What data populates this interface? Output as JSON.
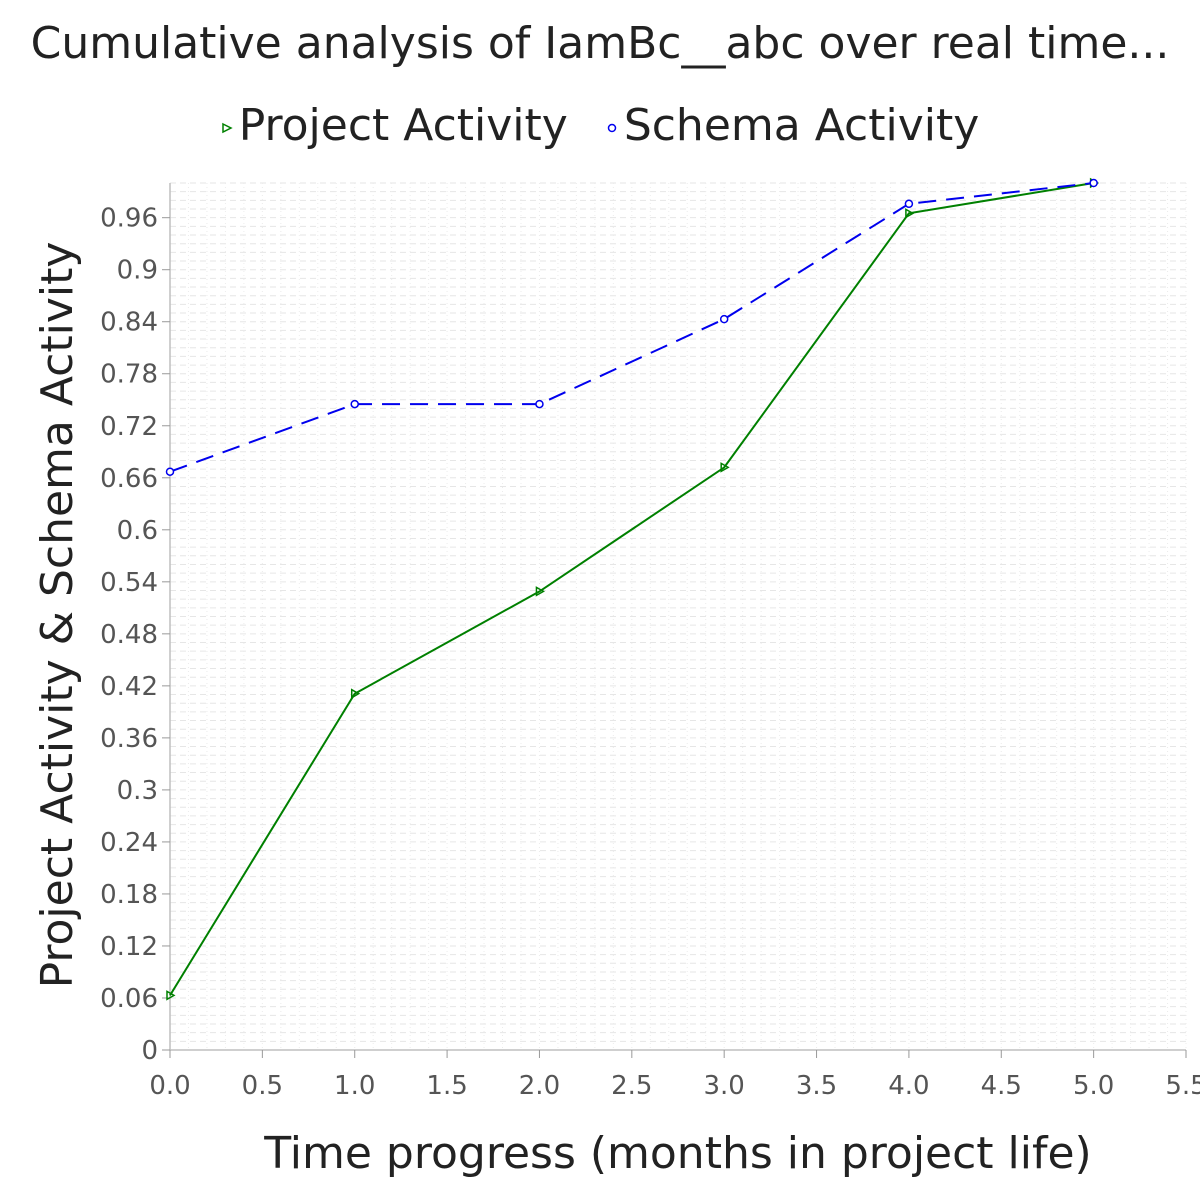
{
  "chart_data": {
    "type": "line",
    "title": "Cumulative analysis of IamBc__abc over real time...",
    "xlabel": "Time progress (months in project life)",
    "ylabel": "Project Activity & Schema Activity",
    "xlim": [
      0,
      5.5
    ],
    "ylim": [
      0,
      1.0
    ],
    "x_ticks": [
      "0.0",
      "0.5",
      "1.0",
      "1.5",
      "2.0",
      "2.5",
      "3.0",
      "3.5",
      "4.0",
      "4.5",
      "5.0",
      "5.5"
    ],
    "y_ticks": [
      "0",
      "0.06",
      "0.12",
      "0.18",
      "0.24",
      "0.3",
      "0.36",
      "0.42",
      "0.48",
      "0.54",
      "0.6",
      "0.66",
      "0.72",
      "0.78",
      "0.84",
      "0.9",
      "0.96"
    ],
    "grid": true,
    "legend_position": "top",
    "series": [
      {
        "name": "Project Activity",
        "color": "#008000",
        "style": "solid",
        "marker": "triangle-right",
        "x": [
          0,
          1,
          2,
          3,
          4,
          5
        ],
        "y": [
          0.063,
          0.411,
          0.529,
          0.672,
          0.965,
          1.0
        ]
      },
      {
        "name": "Schema Activity",
        "color": "#0000ee",
        "style": "dashed",
        "marker": "circle",
        "x": [
          0,
          1,
          2,
          3,
          4,
          5
        ],
        "y": [
          0.667,
          0.745,
          0.745,
          0.843,
          0.976,
          1.0
        ]
      }
    ]
  }
}
